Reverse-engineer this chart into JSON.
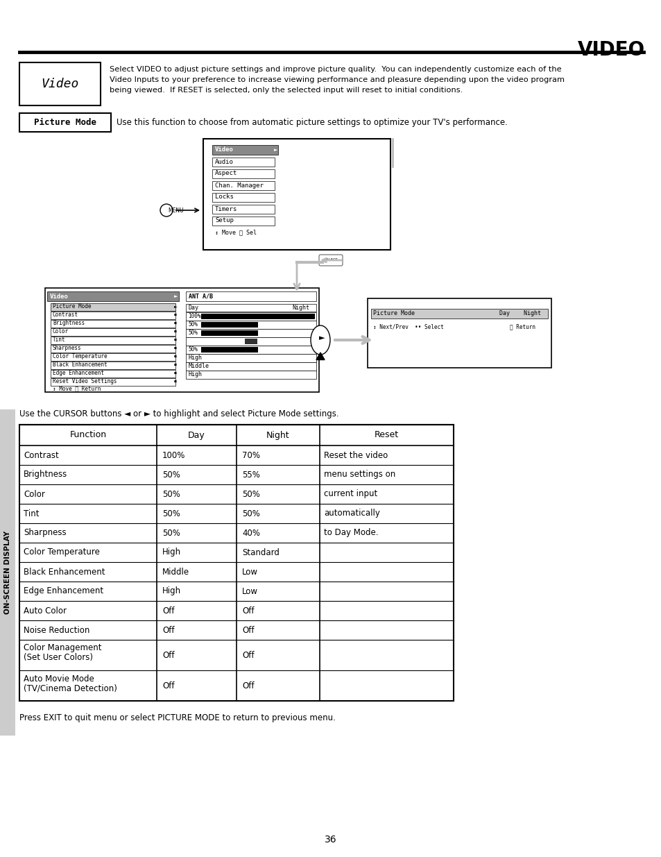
{
  "title": "VIDEO",
  "page_number": "36",
  "bg_color": "#ffffff",
  "video_box_label": "Video",
  "video_description_lines": [
    "Select VIDEO to adjust picture settings and improve picture quality.  You can independently customize each of the",
    "Video Inputs to your preference to increase viewing performance and pleasure depending upon the video program",
    "being viewed.  If RESET is selected, only the selected input will reset to initial conditions."
  ],
  "picture_mode_label": "Picture Mode",
  "picture_mode_desc": "Use this function to choose from automatic picture settings to optimize your TV's performance.",
  "cursor_text": "Use the CURSOR buttons ◄ or ► to highlight and select Picture Mode settings.",
  "exit_text": "Press EXIT to quit menu or select PICTURE MODE to return to previous menu.",
  "sidebar_text": "ON-SCREEN DISPLAY",
  "table_headers": [
    "Function",
    "Day",
    "Night",
    "Reset"
  ],
  "table_rows": [
    [
      "Contrast",
      "100%",
      "70%",
      "Reset the video"
    ],
    [
      "Brightness",
      "50%",
      "55%",
      "menu settings on"
    ],
    [
      "Color",
      "50%",
      "50%",
      "current input"
    ],
    [
      "Tint",
      "50%",
      "50%",
      "automatically"
    ],
    [
      "Sharpness",
      "50%",
      "40%",
      "to Day Mode."
    ],
    [
      "Color Temperature",
      "High",
      "Standard",
      ""
    ],
    [
      "Black Enhancement",
      "Middle",
      "Low",
      ""
    ],
    [
      "Edge Enhancement",
      "High",
      "Low",
      ""
    ],
    [
      "Auto Color",
      "Off",
      "Off",
      ""
    ],
    [
      "Noise Reduction",
      "Off",
      "Off",
      ""
    ],
    [
      "Color Management\n(Set User Colors)",
      "Off",
      "Off",
      ""
    ],
    [
      "Auto Movie Mode\n(TV/Cinema Detection)",
      "Off",
      "Off",
      ""
    ]
  ],
  "menu_items_screen1": [
    "Video",
    "Audio",
    "Aspect",
    "Chan. Manager",
    "Locks",
    "Timers",
    "Setup"
  ],
  "menu_bottom_screen1": "↕ Move Ⓢ Sel",
  "video_submenu_left": [
    "Picture Mode",
    "Contrast",
    "Brightness",
    "Color",
    "Tint",
    "Sharpness",
    "Color Temperature",
    "Black Enhancement",
    "Edge Enhancement",
    "Reset Video Settings"
  ],
  "video_submenu_bottom": "↕ Move Ⓢ Return",
  "ant_header": "ANT A/B",
  "ant_day_night": "Day          Night",
  "ant_bars": [
    {
      "label": "100%",
      "fill": 1.0
    },
    {
      "label": "50%",
      "fill": 0.5
    },
    {
      "label": "50%",
      "fill": 0.5
    },
    {
      "label": "",
      "fill": -1
    },
    {
      "label": "50%",
      "fill": 0.5
    }
  ],
  "ant_text_only": [
    "High",
    "Middle",
    "High"
  ],
  "picture_mode_bottom_label": "Picture Mode",
  "day_night_bottom_label": "Day    Night",
  "nav_bottom": "↕ Next/Prev  •• Select",
  "return_bottom": "Ⓢ Return"
}
